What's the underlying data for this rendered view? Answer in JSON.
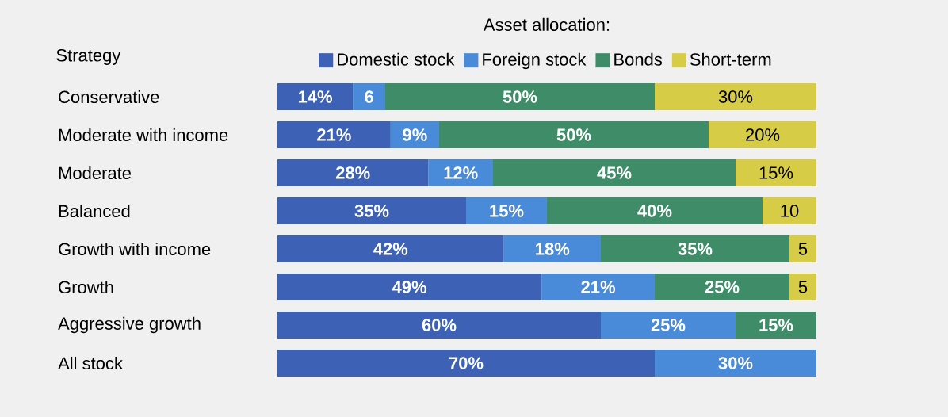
{
  "chart_data": {
    "type": "bar",
    "orientation": "horizontal",
    "stacked": true,
    "legend": "top",
    "legend_title": "Asset allocation:",
    "ylabel": "Strategy",
    "xlim": [
      0,
      100
    ],
    "tick_labels": "y",
    "categories": [
      "Conservative",
      "Moderate with income",
      "Moderate",
      "Balanced",
      "Growth with income",
      "Growth",
      "Aggressive growth",
      "All stock"
    ],
    "series": [
      {
        "name": "Domestic stock",
        "color": "#3d62b5",
        "values": [
          14,
          21,
          28,
          35,
          42,
          49,
          60,
          70
        ],
        "value_labels": [
          "14%",
          "21%",
          "28%",
          "35%",
          "42%",
          "49%",
          "60%",
          "70%"
        ]
      },
      {
        "name": "Foreign stock",
        "color": "#4a8bd9",
        "values": [
          6,
          9,
          12,
          15,
          18,
          21,
          25,
          30
        ],
        "value_labels": [
          "6",
          "9%",
          "12%",
          "15%",
          "18%",
          "21%",
          "25%",
          "30%"
        ]
      },
      {
        "name": "Bonds",
        "color": "#3f8c69",
        "values": [
          50,
          50,
          45,
          40,
          35,
          25,
          15,
          null
        ],
        "value_labels": [
          "50%",
          "50%",
          "45%",
          "40%",
          "35%",
          "25%",
          "15%",
          null
        ]
      },
      {
        "name": "Short-term",
        "color": "#d6cc46",
        "values": [
          30,
          20,
          15,
          10,
          5,
          5,
          null,
          null
        ],
        "value_labels": [
          "30%",
          "20%",
          "15%",
          "10",
          "5",
          "5",
          null,
          null
        ]
      }
    ]
  }
}
